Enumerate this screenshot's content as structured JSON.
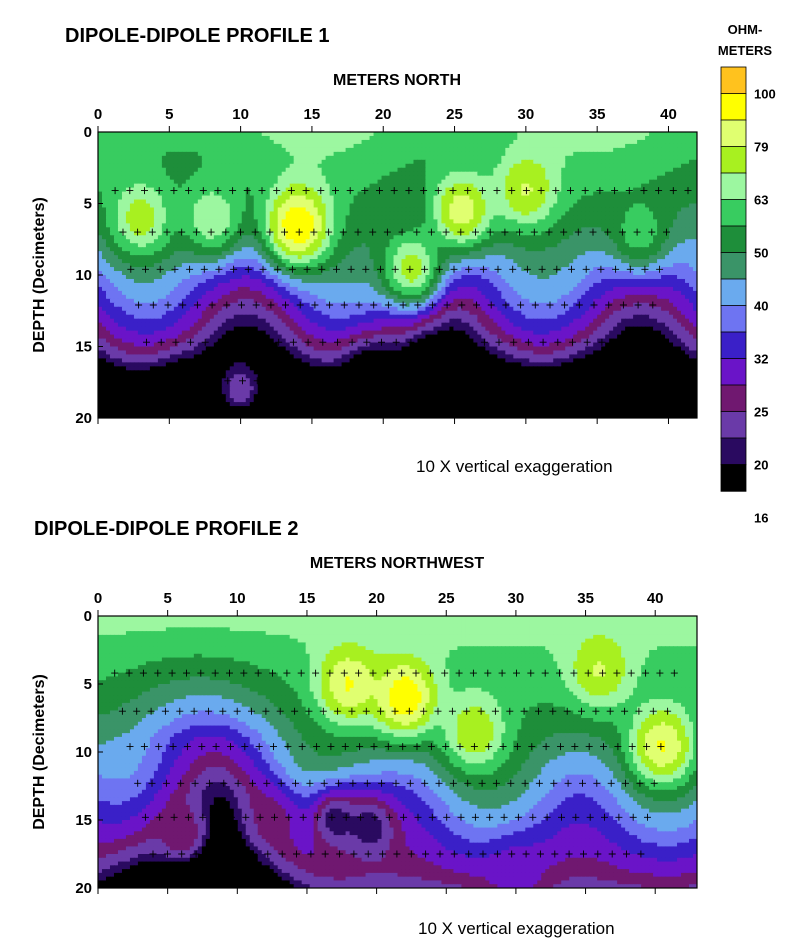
{
  "chart_data": [
    {
      "type": "heatmap",
      "title": "DIPOLE-DIPOLE PROFILE 1",
      "xlabel": "METERS NORTH",
      "ylabel": "DEPTH (Decimeters)",
      "note": "10 X vertical exaggeration",
      "xlim": [
        0,
        42
      ],
      "ylim": [
        0,
        20
      ],
      "x_ticks": [
        "0",
        "5",
        "10",
        "15",
        "20",
        "25",
        "30",
        "35",
        "40"
      ],
      "y_ticks": [
        "0",
        "5",
        "10",
        "15",
        "20"
      ],
      "data_rows_depth": [
        4.1,
        7.0,
        9.6,
        12.1,
        14.7,
        17.4
      ],
      "features": [
        {
          "x": 14,
          "depth": 6.5,
          "value": 100
        },
        {
          "x": 25.5,
          "depth": 5.5,
          "value": 85
        },
        {
          "x": 30,
          "depth": 4,
          "value": 80
        },
        {
          "x": 3,
          "depth": 6,
          "value": 75
        },
        {
          "x": 8,
          "depth": 6,
          "value": 70
        },
        {
          "x": 22,
          "depth": 9.5,
          "value": 75
        },
        {
          "x": 38,
          "depth": 7,
          "value": 60
        },
        {
          "x": 5.5,
          "depth": 19,
          "value": 16
        },
        {
          "x": 19,
          "depth": 17,
          "value": 17
        },
        {
          "x": 33.5,
          "depth": 19,
          "value": 16
        },
        {
          "x": 29,
          "depth": 19,
          "value": 17
        },
        {
          "x": 10,
          "depth": 18,
          "value": 24
        }
      ]
    },
    {
      "type": "heatmap",
      "title": "DIPOLE-DIPOLE PROFILE 2",
      "xlabel": "METERS  NORTHWEST",
      "ylabel": "DEPTH (Decimeters)",
      "note": "10 X vertical exaggeration",
      "xlim": [
        0,
        43
      ],
      "ylim": [
        0,
        20
      ],
      "x_ticks": [
        "0",
        "5",
        "10",
        "15",
        "20",
        "25",
        "30",
        "35",
        "40"
      ],
      "y_ticks": [
        "0",
        "5",
        "10",
        "15",
        "20"
      ],
      "data_rows_depth": [
        4.2,
        7.0,
        9.6,
        12.3,
        14.8,
        17.5
      ],
      "features": [
        {
          "x": 22,
          "depth": 6,
          "value": 100
        },
        {
          "x": 18,
          "depth": 5,
          "value": 90
        },
        {
          "x": 40.5,
          "depth": 9.5,
          "value": 90
        },
        {
          "x": 36,
          "depth": 4,
          "value": 80
        },
        {
          "x": 27,
          "depth": 8.5,
          "value": 78
        },
        {
          "x": 17,
          "depth": 15,
          "value": 20
        },
        {
          "x": 19.5,
          "depth": 15.5,
          "value": 20
        },
        {
          "x": 12.5,
          "depth": 15,
          "value": 26
        },
        {
          "x": 6,
          "depth": 16,
          "value": 28
        },
        {
          "x": 30,
          "depth": 19,
          "value": 30
        }
      ]
    }
  ],
  "legend": {
    "title_line1": "OHM-",
    "title_line2": "METERS",
    "labels": [
      "100",
      "79",
      "63",
      "50",
      "40",
      "32",
      "25",
      "20",
      "16"
    ],
    "colors": [
      "#FFC21E",
      "#FFFF00",
      "#E0FF70",
      "#A8F020",
      "#9CF7A0",
      "#38CC60",
      "#1E8E3A",
      "#3A9468",
      "#6AAAEE",
      "#6E74F2",
      "#3A20C8",
      "#6A14C8",
      "#701870",
      "#6A3AA8",
      "#2A0A60",
      "#000000"
    ]
  }
}
